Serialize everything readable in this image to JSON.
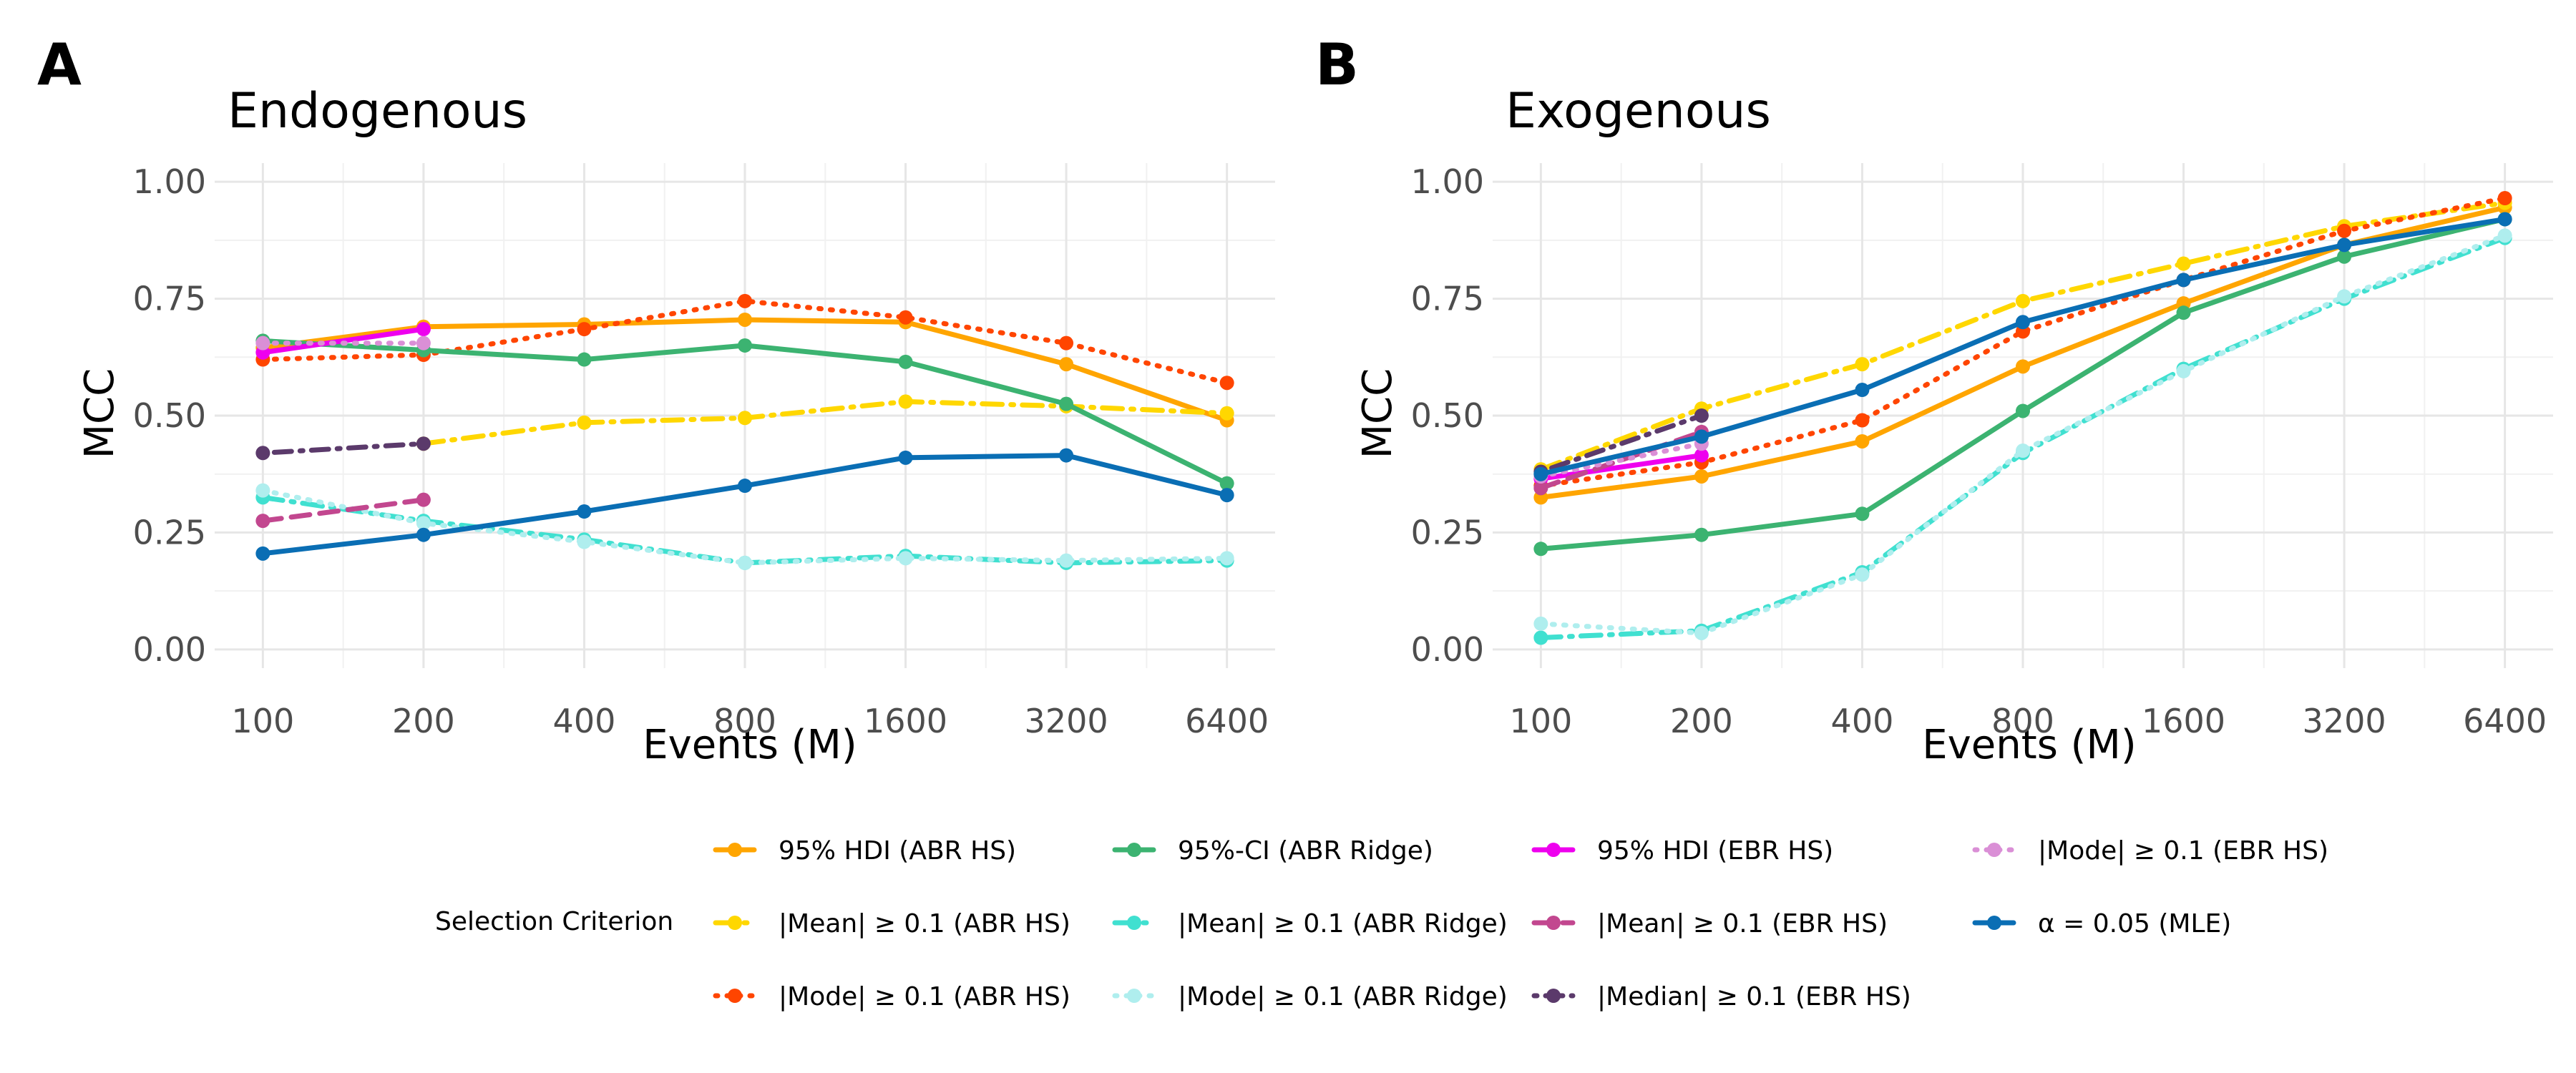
{
  "chart_data": [
    {
      "type": "line",
      "panel": "A",
      "title": "Endogenous",
      "xlabel": "Events (M)",
      "ylabel": "MCC",
      "x_scale": "log2",
      "x": [
        100,
        200,
        400,
        800,
        1600,
        3200,
        6400
      ],
      "x_tick_labels": [
        "100",
        "200",
        "400",
        "800",
        "1600",
        "3200",
        "6400"
      ],
      "y_ticks": [
        0,
        0.25,
        0.5,
        0.75,
        1.0
      ],
      "y_tick_labels": [
        "0.00",
        "0.25",
        "0.50",
        "0.75",
        "1.00"
      ],
      "ylim": [
        -0.04,
        1.04
      ],
      "grid": true,
      "series": [
        {
          "name": "95% HDI (ABR HS)",
          "values": [
            0.645,
            0.69,
            0.695,
            0.705,
            0.7,
            0.61,
            0.49
          ]
        },
        {
          "name": "|Mean| ≥ 0.1 (ABR HS)",
          "values": [
            null,
            0.44,
            0.485,
            0.495,
            0.53,
            0.52,
            0.505
          ]
        },
        {
          "name": "|Mode| ≥ 0.1 (ABR HS)",
          "values": [
            0.62,
            0.63,
            0.685,
            0.745,
            0.71,
            0.655,
            0.57
          ]
        },
        {
          "name": "95%-CI (ABR Ridge)",
          "values": [
            0.66,
            0.64,
            0.62,
            0.65,
            0.615,
            0.525,
            0.355
          ]
        },
        {
          "name": "|Mean| ≥ 0.1 (ABR Ridge)",
          "values": [
            0.325,
            0.275,
            0.235,
            0.185,
            0.2,
            0.185,
            0.19
          ]
        },
        {
          "name": "|Mode| ≥ 0.1 (ABR Ridge)",
          "values": [
            0.34,
            0.27,
            0.23,
            0.185,
            0.195,
            0.19,
            0.195
          ]
        },
        {
          "name": "95% HDI (EBR HS)",
          "values": [
            0.635,
            0.685,
            null,
            null,
            null,
            null,
            null
          ]
        },
        {
          "name": "|Mean| ≥ 0.1 (EBR HS)",
          "values": [
            0.275,
            0.32,
            null,
            null,
            null,
            null,
            null
          ]
        },
        {
          "name": "|Median| ≥ 0.1 (EBR HS)",
          "values": [
            0.42,
            0.44,
            null,
            null,
            null,
            null,
            null
          ]
        },
        {
          "name": "|Mode| ≥ 0.1 (EBR HS)",
          "values": [
            0.655,
            0.655,
            null,
            null,
            null,
            null,
            null
          ]
        },
        {
          "name": "α = 0.05 (MLE)",
          "values": [
            0.205,
            0.245,
            0.295,
            0.35,
            0.41,
            0.415,
            0.33
          ]
        }
      ]
    },
    {
      "type": "line",
      "panel": "B",
      "title": "Exogenous",
      "xlabel": "Events (M)",
      "ylabel": "MCC",
      "x_scale": "log2",
      "x": [
        100,
        200,
        400,
        800,
        1600,
        3200,
        6400
      ],
      "x_tick_labels": [
        "100",
        "200",
        "400",
        "800",
        "1600",
        "3200",
        "6400"
      ],
      "y_ticks": [
        0,
        0.25,
        0.5,
        0.75,
        1.0
      ],
      "y_tick_labels": [
        "0.00",
        "0.25",
        "0.50",
        "0.75",
        "1.00"
      ],
      "ylim": [
        -0.04,
        1.04
      ],
      "grid": true,
      "series": [
        {
          "name": "95% HDI (ABR HS)",
          "values": [
            0.325,
            0.37,
            0.445,
            0.605,
            0.74,
            0.865,
            0.945
          ]
        },
        {
          "name": "|Mean| ≥ 0.1 (ABR HS)",
          "values": [
            0.385,
            0.515,
            0.61,
            0.745,
            0.825,
            0.905,
            0.955
          ]
        },
        {
          "name": "|Mode| ≥ 0.1 (ABR HS)",
          "values": [
            0.35,
            0.4,
            0.49,
            0.68,
            0.79,
            0.895,
            0.965
          ]
        },
        {
          "name": "95%-CI (ABR Ridge)",
          "values": [
            0.215,
            0.245,
            0.29,
            0.51,
            0.72,
            0.84,
            0.92
          ]
        },
        {
          "name": "|Mean| ≥ 0.1 (ABR Ridge)",
          "values": [
            0.025,
            0.04,
            0.165,
            0.42,
            0.6,
            0.75,
            0.88
          ]
        },
        {
          "name": "|Mode| ≥ 0.1 (ABR Ridge)",
          "values": [
            0.055,
            0.035,
            0.16,
            0.425,
            0.595,
            0.755,
            0.885
          ]
        },
        {
          "name": "95% HDI (EBR HS)",
          "values": [
            0.365,
            0.415,
            null,
            null,
            null,
            null,
            null
          ]
        },
        {
          "name": "|Mean| ≥ 0.1 (EBR HS)",
          "values": [
            0.345,
            0.465,
            null,
            null,
            null,
            null,
            null
          ]
        },
        {
          "name": "|Median| ≥ 0.1 (EBR HS)",
          "values": [
            0.38,
            0.5,
            null,
            null,
            null,
            null,
            null
          ]
        },
        {
          "name": "|Mode| ≥ 0.1 (EBR HS)",
          "values": [
            0.37,
            0.44,
            null,
            null,
            null,
            null,
            null
          ]
        },
        {
          "name": "α = 0.05 (MLE)",
          "values": [
            0.375,
            0.455,
            0.555,
            0.7,
            0.79,
            0.865,
            0.92
          ]
        }
      ]
    }
  ],
  "legend": {
    "title": "Selection Criterion",
    "placement": "bottom",
    "columns": [
      [
        {
          "label": "95% HDI (ABR HS)",
          "color": "#FFA500",
          "dash": "solid"
        },
        {
          "label": "|Mean| ≥ 0.1 (ABR HS)",
          "color": "#FFD700",
          "dash": "dashdot"
        },
        {
          "label": "|Mode| ≥ 0.1 (ABR HS)",
          "color": "#FF4500",
          "dash": "dotted"
        }
      ],
      [
        {
          "label": "95%-CI (ABR Ridge)",
          "color": "#3CB371",
          "dash": "solid"
        },
        {
          "label": "|Mean| ≥ 0.1 (ABR Ridge)",
          "color": "#40E0D0",
          "dash": "dashdot"
        },
        {
          "label": "|Mode| ≥ 0.1 (ABR Ridge)",
          "color": "#AFEEEE",
          "dash": "dotted"
        }
      ],
      [
        {
          "label": "95% HDI (EBR HS)",
          "color": "#EE00EE",
          "dash": "solid"
        },
        {
          "label": "|Mean| ≥ 0.1 (EBR HS)",
          "color": "#C2478F",
          "dash": "dashed"
        },
        {
          "label": "|Median| ≥ 0.1 (EBR HS)",
          "color": "#5B3A6B",
          "dash": "dotdash"
        }
      ],
      [
        {
          "label": "|Mode| ≥ 0.1 (EBR HS)",
          "color": "#DA8FD6",
          "dash": "dotted"
        },
        {
          "label": "α = 0.05 (MLE)",
          "color": "#0A6EB4",
          "dash": "solid"
        }
      ]
    ]
  }
}
